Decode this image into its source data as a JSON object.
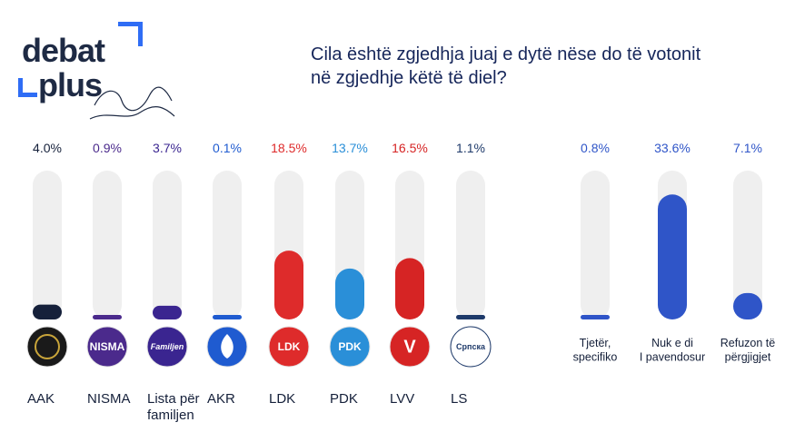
{
  "logo": {
    "line1": "debat",
    "line2": "plus"
  },
  "question": {
    "line1": "Cila është zgjedhja juaj e dytë nëse do të votonit",
    "line2": "në zgjedhje këtë të diel?"
  },
  "colors": {
    "track": "#efefef",
    "navy": "#15203a",
    "purple": "#4b2a8c",
    "indigo": "#3a2590",
    "akr_blue": "#1f5bd0",
    "ldk_red": "#de2b2b",
    "pdk_blue": "#2a8fd8",
    "lvv_red": "#d62424",
    "ls_navy": "#1e3a6a",
    "other_blue": "#2f55c8"
  },
  "chart_data": {
    "type": "bar",
    "title": "Cila është zgjedhja juaj e dytë nëse do të votonit në zgjedhje këtë të diel?",
    "ylim": [
      0,
      40
    ],
    "categories": [
      "AAK",
      "NISMA",
      "Lista për familjen",
      "AKR",
      "LDK",
      "PDK",
      "LVV",
      "LS",
      "Tjetër, specifiko",
      "Nuk e di / I pavendosur",
      "Refuzon të përgjigjet"
    ],
    "values": [
      4.0,
      0.9,
      3.7,
      0.1,
      18.5,
      13.7,
      16.5,
      1.1,
      0.8,
      33.6,
      7.1
    ],
    "value_labels": [
      "4.0%",
      "0.9%",
      "3.7%",
      "0.1%",
      "18.5%",
      "13.7%",
      "16.5%",
      "1.1%",
      "0.8%",
      "33.6%",
      "7.1%"
    ],
    "bars": [
      {
        "label_lines": [
          "AAK"
        ],
        "logo_text": "",
        "logo_icon": "aak-emblem-icon",
        "color": "#15203a",
        "logo_bg": "#1a1a1a",
        "label_color": "#15203a"
      },
      {
        "label_lines": [
          "NISMA"
        ],
        "logo_text": "NISMA",
        "logo_icon": "nisma-logo-icon",
        "color": "#4b2a8c",
        "logo_bg": "#4b2a8c",
        "label_color": "#4b2a8c"
      },
      {
        "label_lines": [
          "Lista për",
          "familjen"
        ],
        "logo_text": "Familjen",
        "logo_icon": "familjen-logo-icon",
        "color": "#3a2590",
        "logo_bg": "#3a2590",
        "label_color": "#3a2590"
      },
      {
        "label_lines": [
          "AKR"
        ],
        "logo_text": "",
        "logo_icon": "akr-flame-icon",
        "color": "#1f5bd0",
        "logo_bg": "#1f5bd0",
        "label_color": "#1f5bd0"
      },
      {
        "label_lines": [
          "LDK"
        ],
        "logo_text": "LDK",
        "logo_icon": "ldk-logo-icon",
        "color": "#de2b2b",
        "logo_bg": "#de2b2b",
        "label_color": "#de2b2b"
      },
      {
        "label_lines": [
          "PDK"
        ],
        "logo_text": "PDK",
        "logo_icon": "pdk-logo-icon",
        "color": "#2a8fd8",
        "logo_bg": "#2a8fd8",
        "label_color": "#2a8fd8"
      },
      {
        "label_lines": [
          "LVV"
        ],
        "logo_text": "V",
        "logo_icon": "lvv-logo-icon",
        "color": "#d62424",
        "logo_bg": "#d62424",
        "label_color": "#d62424"
      },
      {
        "label_lines": [
          "LS"
        ],
        "logo_text": "Српска",
        "logo_icon": "ls-logo-icon",
        "color": "#1e3a6a",
        "logo_bg": "#ffffff",
        "label_color": "#1e3a6a"
      },
      {
        "label_lines": [
          "Tjetër,",
          "specifiko"
        ],
        "logo_text": "",
        "logo_icon": "",
        "color": "#2f55c8",
        "logo_bg": "",
        "label_color": "#2f55c8"
      },
      {
        "label_lines": [
          "Nuk e di",
          "I pavendosur"
        ],
        "logo_text": "",
        "logo_icon": "",
        "color": "#2f55c8",
        "logo_bg": "",
        "label_color": "#2f55c8"
      },
      {
        "label_lines": [
          "Refuzon të",
          "përgjigjet"
        ],
        "logo_text": "",
        "logo_icon": "",
        "color": "#2f55c8",
        "logo_bg": "",
        "label_color": "#2f55c8"
      }
    ]
  }
}
